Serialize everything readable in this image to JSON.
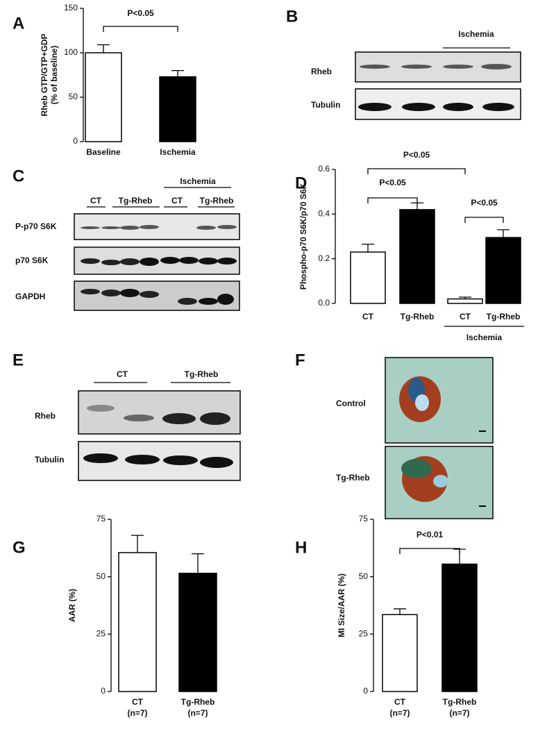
{
  "panel_labels": [
    "A",
    "B",
    "C",
    "D",
    "E",
    "F",
    "G",
    "H"
  ],
  "chart_data": [
    {
      "type": "bar",
      "ylabel": [
        "Rheb GTP/GTP+GDP",
        "(% of baseline)"
      ],
      "categories": [
        "Baseline",
        "Ischemia"
      ],
      "values": [
        100,
        73
      ],
      "errors": [
        9,
        7
      ],
      "colors": [
        "#ffffff",
        "#000000"
      ],
      "ylim": [
        0,
        150
      ],
      "yticks": [
        0,
        50,
        100,
        150
      ],
      "annotations": [
        "P<0.05"
      ]
    },
    {
      "type": "bar",
      "ylabel": [
        "Phospho-p70 S6K/p70 S6K"
      ],
      "categories": [
        "CT",
        "Tg-Rheb",
        "CT",
        "Tg-Rheb"
      ],
      "values": [
        0.23,
        0.42,
        0.02,
        0.295
      ],
      "errors": [
        0.035,
        0.03,
        0.008,
        0.035
      ],
      "colors": [
        "#ffffff",
        "#000000",
        "#ffffff",
        "#000000"
      ],
      "ylim": [
        0,
        0.6
      ],
      "yticks": [
        {
          "value": 0,
          "label": "0.0"
        },
        0.2,
        0.4,
        0.6
      ],
      "annotations": [
        "P<0.05",
        "P<0.05",
        "P<0.05"
      ],
      "group_label": "Ischemia"
    },
    {
      "type": "bar",
      "ylabel": [
        "AAR (%)"
      ],
      "categories": [
        "CT",
        "Tg-Rheb"
      ],
      "sublabels": [
        "(n=7)",
        "(n=7)"
      ],
      "values": [
        60.5,
        51.5
      ],
      "errors": [
        7.5,
        8.5
      ],
      "colors": [
        "#ffffff",
        "#000000"
      ],
      "ylim": [
        0,
        75
      ],
      "yticks": [
        0,
        25,
        50,
        75
      ],
      "annotations": []
    },
    {
      "type": "bar",
      "ylabel": [
        "MI Size/AAR (%)"
      ],
      "categories": [
        "CT",
        "Tg-Rheb"
      ],
      "sublabels": [
        "(n=7)",
        "(n=7)"
      ],
      "values": [
        33.5,
        55.5
      ],
      "errors": [
        2.5,
        6.5
      ],
      "colors": [
        "#ffffff",
        "#000000"
      ],
      "ylim": [
        0,
        75
      ],
      "yticks": [
        0,
        25,
        50,
        75
      ],
      "annotations": [
        "P<0.01"
      ]
    }
  ],
  "blots": {
    "B": {
      "group": "Ischemia",
      "rows": [
        "Rheb",
        "Tubulin"
      ]
    },
    "C": {
      "super": "Ischemia",
      "groups": [
        "CT",
        "Tg-Rheb",
        "CT",
        "Tg-Rheb"
      ],
      "rows": [
        "P-p70 S6K",
        "p70 S6K",
        "GAPDH"
      ]
    },
    "E": {
      "groups": [
        "CT",
        "Tg-Rheb"
      ],
      "rows": [
        "Rheb",
        "Tubulin"
      ]
    },
    "F": {
      "rows": [
        "Control",
        "Tg-Rheb"
      ]
    }
  }
}
